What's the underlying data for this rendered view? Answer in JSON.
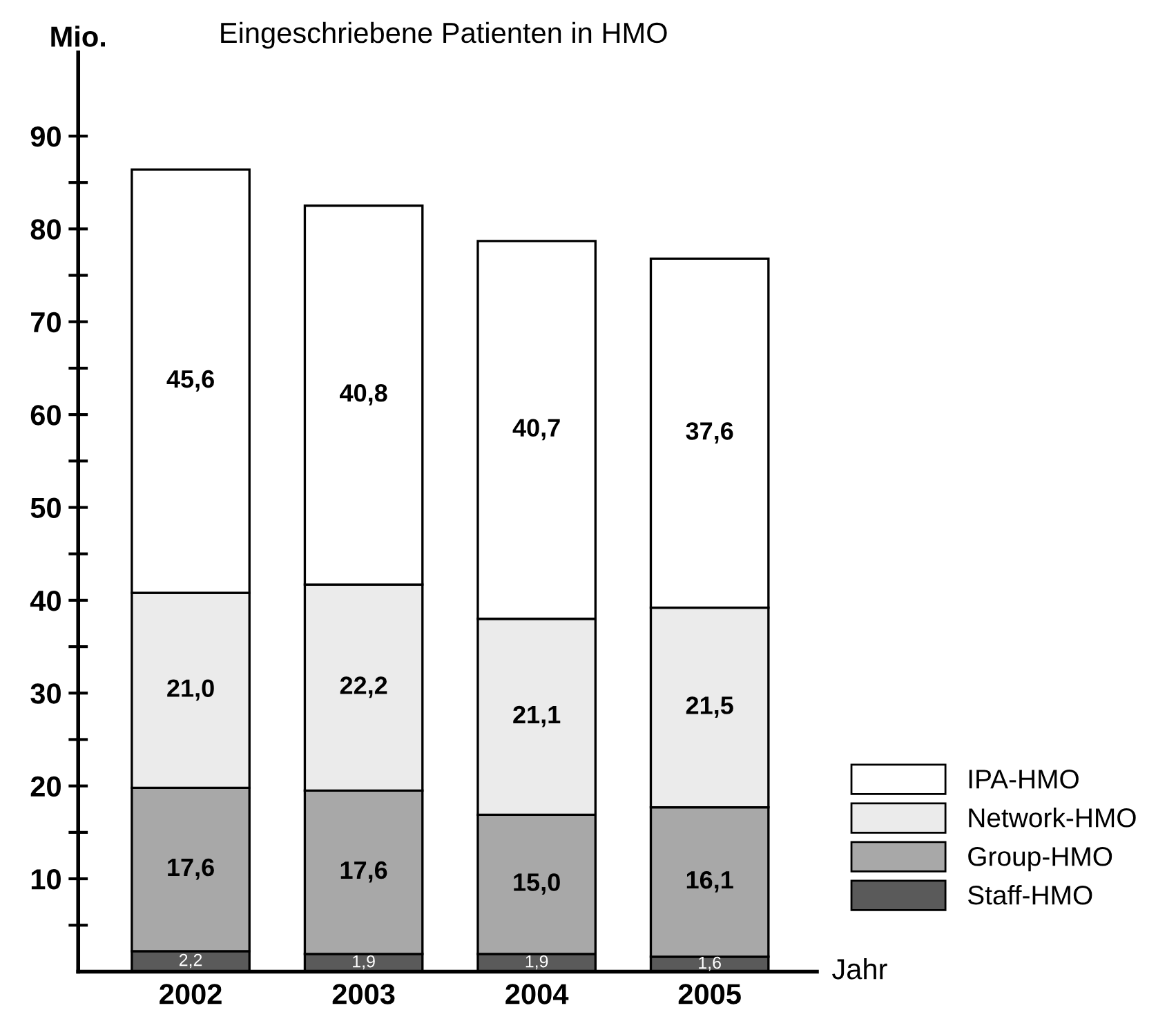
{
  "chart_data": {
    "type": "bar",
    "title": "Eingeschriebene Patienten in HMO",
    "xlabel": "Jahr",
    "ylabel": "Mio.",
    "categories": [
      "2002",
      "2003",
      "2004",
      "2005"
    ],
    "stacked": true,
    "series": [
      {
        "name": "Staff-HMO",
        "color": "#5a5a5a",
        "values": [
          2.2,
          1.9,
          1.9,
          1.6
        ],
        "value_labels": [
          "2,2",
          "1,9",
          "1,9",
          "1,6"
        ]
      },
      {
        "name": "Group-HMO",
        "color": "#a8a8a8",
        "values": [
          17.6,
          17.6,
          15.0,
          16.1
        ],
        "value_labels": [
          "17,6",
          "17,6",
          "15,0",
          "16,1"
        ]
      },
      {
        "name": "Network-HMO",
        "color": "#ebebeb",
        "values": [
          21.0,
          22.2,
          21.1,
          21.5
        ],
        "value_labels": [
          "21,0",
          "22,2",
          "21,1",
          "21,5"
        ]
      },
      {
        "name": "IPA-HMO",
        "color": "#ffffff",
        "values": [
          45.6,
          40.8,
          40.7,
          37.6
        ],
        "value_labels": [
          "45,6",
          "40,8",
          "40,7",
          "37,6"
        ]
      }
    ],
    "ylim": [
      0,
      99
    ],
    "yticks": [
      {
        "value": 5,
        "label": null
      },
      10,
      {
        "value": 15,
        "label": null
      },
      20,
      {
        "value": 25,
        "label": null
      },
      30,
      {
        "value": 35,
        "label": null
      },
      40,
      {
        "value": 45,
        "label": null
      },
      50,
      {
        "value": 55,
        "label": null
      },
      60,
      {
        "value": 65,
        "label": null
      },
      70,
      {
        "value": 75,
        "label": null
      },
      80,
      {
        "value": 85,
        "label": null
      },
      90
    ],
    "grid": false,
    "legend": "bottom right"
  }
}
